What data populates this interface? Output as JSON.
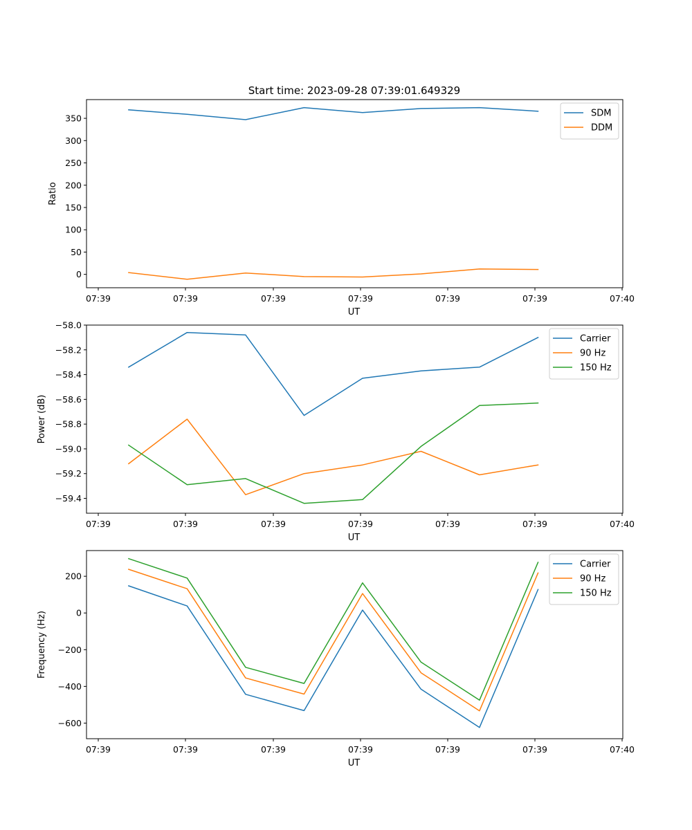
{
  "title": "Start time: 2023-09-28 07:39:01.649329",
  "chart_data": [
    {
      "type": "line",
      "title": "Start time: 2023-09-28 07:39:01.649329",
      "xlabel": "UT",
      "ylabel": "Ratio",
      "x_tick_labels": [
        "07:39",
        "07:39",
        "07:39",
        "07:39",
        "07:39",
        "07:39",
        "07:40"
      ],
      "x": [
        1,
        2,
        3,
        4,
        5,
        6,
        7,
        8
      ],
      "xlim": [
        0.28,
        9.45
      ],
      "ylim": [
        -30,
        392
      ],
      "yticks": [
        0,
        50,
        100,
        150,
        200,
        250,
        300,
        350
      ],
      "legend": "top-right",
      "series": [
        {
          "name": "SDM",
          "color": "#1f77b4",
          "values": [
            369,
            359,
            347,
            374,
            363,
            372,
            374,
            366
          ]
        },
        {
          "name": "DDM",
          "color": "#ff7f0e",
          "values": [
            4,
            -11,
            3,
            -5,
            -6,
            1,
            12,
            11
          ]
        }
      ]
    },
    {
      "type": "line",
      "title": "",
      "xlabel": "UT",
      "ylabel": "Power (dB)",
      "x_tick_labels": [
        "07:39",
        "07:39",
        "07:39",
        "07:39",
        "07:39",
        "07:39",
        "07:40"
      ],
      "x": [
        1,
        2,
        3,
        4,
        5,
        6,
        7,
        8
      ],
      "xlim": [
        0.28,
        9.45
      ],
      "ylim": [
        -59.52,
        -58.0
      ],
      "yticks": [
        -59.4,
        -59.2,
        -59.0,
        -58.8,
        -58.6,
        -58.4,
        -58.2,
        -58.0
      ],
      "ytick_labels": [
        "−59.4",
        "−59.2",
        "−59.0",
        "−58.8",
        "−58.6",
        "−58.4",
        "−58.2",
        "−58.0"
      ],
      "legend": "top-right",
      "series": [
        {
          "name": "Carrier",
          "color": "#1f77b4",
          "values": [
            -58.34,
            -58.06,
            -58.08,
            -58.73,
            -58.43,
            -58.37,
            -58.34,
            -58.1
          ]
        },
        {
          "name": "90 Hz",
          "color": "#ff7f0e",
          "values": [
            -59.12,
            -58.76,
            -59.37,
            -59.2,
            -59.13,
            -59.02,
            -59.21,
            -59.13
          ]
        },
        {
          "name": "150 Hz",
          "color": "#2ca02c",
          "values": [
            -58.97,
            -59.29,
            -59.24,
            -59.44,
            -59.41,
            -58.98,
            -58.65,
            -58.63
          ]
        }
      ]
    },
    {
      "type": "line",
      "title": "",
      "xlabel": "UT",
      "ylabel": "Frequency (Hz)",
      "x_tick_labels": [
        "07:39",
        "07:39",
        "07:39",
        "07:39",
        "07:39",
        "07:39",
        "07:40"
      ],
      "x": [
        1,
        2,
        3,
        4,
        5,
        6,
        7,
        8
      ],
      "xlim": [
        0.28,
        9.45
      ],
      "ylim": [
        -685,
        340
      ],
      "yticks": [
        -600,
        -400,
        -200,
        0,
        200
      ],
      "ytick_labels": [
        "−600",
        "−400",
        "−200",
        "0",
        "200"
      ],
      "legend": "top-right",
      "series": [
        {
          "name": "Carrier",
          "color": "#1f77b4",
          "values": [
            148,
            38,
            -443,
            -532,
            16,
            -415,
            -624,
            128
          ]
        },
        {
          "name": "90 Hz",
          "color": "#ff7f0e",
          "values": [
            238,
            132,
            -354,
            -442,
            106,
            -326,
            -533,
            218
          ]
        },
        {
          "name": "150 Hz",
          "color": "#2ca02c",
          "values": [
            296,
            190,
            -296,
            -384,
            164,
            -268,
            -475,
            276
          ]
        }
      ]
    }
  ]
}
